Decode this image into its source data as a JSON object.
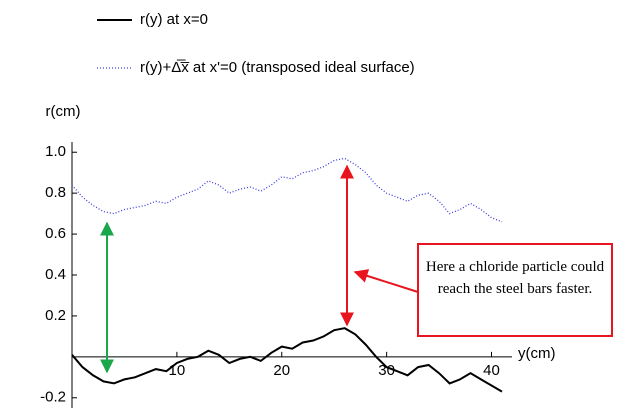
{
  "chart_data": {
    "type": "line",
    "x_label": "y(cm)",
    "y_label": "r(cm)",
    "annotation": "Here a chloride particle could reach the steel bars faster.",
    "x": [
      0,
      1,
      2,
      3,
      4,
      5,
      6,
      7,
      8,
      9,
      10,
      11,
      12,
      13,
      14,
      15,
      16,
      17,
      18,
      19,
      20,
      21,
      22,
      23,
      24,
      25,
      26,
      27,
      28,
      29,
      30,
      31,
      32,
      33,
      34,
      35,
      36,
      37,
      38,
      39,
      40,
      41
    ],
    "series": [
      {
        "name": "r(y) at x=0",
        "color": "#000000",
        "style": "solid",
        "values": [
          0.01,
          -0.05,
          -0.09,
          -0.12,
          -0.13,
          -0.11,
          -0.1,
          -0.08,
          -0.06,
          -0.07,
          -0.03,
          -0.01,
          0.0,
          0.03,
          0.01,
          -0.03,
          -0.01,
          0.0,
          -0.02,
          0.02,
          0.05,
          0.04,
          0.07,
          0.08,
          0.1,
          0.13,
          0.14,
          0.11,
          0.06,
          0.0,
          -0.05,
          -0.07,
          -0.09,
          -0.05,
          -0.04,
          -0.08,
          -0.13,
          -0.11,
          -0.08,
          -0.11,
          -0.14,
          -0.17
        ]
      },
      {
        "name": "r(y)+Δ̅x̅ at x'=0 (transposed ideal surface)",
        "color": "#3a3adf",
        "style": "dotted",
        "values": [
          0.84,
          0.78,
          0.74,
          0.71,
          0.7,
          0.72,
          0.73,
          0.74,
          0.76,
          0.75,
          0.78,
          0.8,
          0.82,
          0.86,
          0.84,
          0.8,
          0.82,
          0.83,
          0.81,
          0.84,
          0.88,
          0.87,
          0.9,
          0.91,
          0.93,
          0.96,
          0.97,
          0.94,
          0.9,
          0.84,
          0.8,
          0.78,
          0.76,
          0.79,
          0.8,
          0.76,
          0.7,
          0.72,
          0.75,
          0.72,
          0.68,
          0.66
        ]
      }
    ],
    "xlim": [
      0,
      41
    ],
    "xticks": [
      10,
      20,
      30,
      40
    ],
    "ylim": [
      -0.25,
      1.05
    ],
    "yticks": [
      -0.2,
      0.2,
      0.4,
      0.6,
      0.8,
      {
        "value": 1,
        "label": "1.0"
      }
    ]
  }
}
